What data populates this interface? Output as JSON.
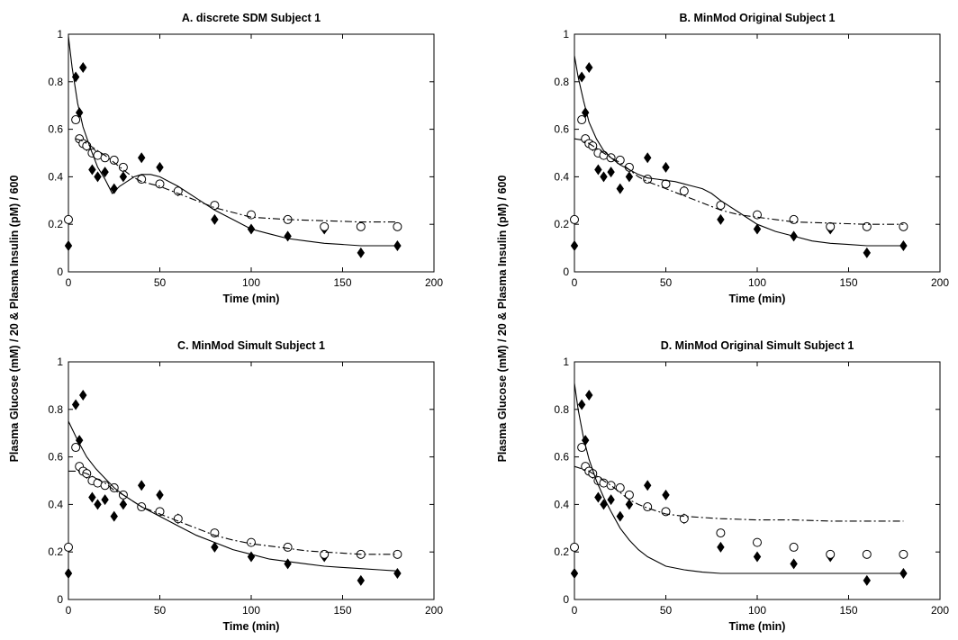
{
  "figure": {
    "shared_ylabel_left": "Plasma  Glucose (mM) / 20 & Plasma  Insulin (pM) / 600",
    "shared_ylabel_right": "Plasma  Glucose (mM) / 20 & Plasma  Insulin (pM) / 600"
  },
  "chart_data": [
    {
      "type": "line",
      "title": "A. discrete SDM Subject 1",
      "xlabel": "Time (min)",
      "ylabel": "",
      "xlim": [
        0,
        200
      ],
      "ylim": [
        0,
        1
      ],
      "xticks": [
        "0",
        "50",
        "100",
        "150",
        "200"
      ],
      "yticks": [
        "0",
        "0.2",
        "0.4",
        "0.6",
        "0.8",
        "1"
      ],
      "series": [
        {
          "marker": "diamond",
          "x": [
            0,
            4,
            6,
            8,
            10,
            13,
            16,
            20,
            25,
            30,
            40,
            50,
            60,
            80,
            100,
            120,
            140,
            160,
            180
          ],
          "y": [
            0.11,
            0.82,
            0.67,
            0.86,
            0.53,
            0.43,
            0.4,
            0.42,
            0.35,
            0.4,
            0.48,
            0.44,
            0.34,
            0.22,
            0.18,
            0.15,
            0.18,
            0.08,
            0.11
          ]
        },
        {
          "marker": "circle",
          "x": [
            0,
            4,
            6,
            8,
            10,
            13,
            16,
            20,
            25,
            30,
            40,
            50,
            60,
            80,
            100,
            120,
            140,
            160,
            180
          ],
          "y": [
            0.22,
            0.64,
            0.56,
            0.54,
            0.53,
            0.5,
            0.49,
            0.48,
            0.47,
            0.44,
            0.39,
            0.37,
            0.34,
            0.28,
            0.24,
            0.22,
            0.19,
            0.19,
            0.19
          ]
        },
        {
          "style": "solid",
          "x": [
            0,
            2,
            5,
            8,
            12,
            16,
            20,
            24,
            28,
            32,
            36,
            40,
            45,
            50,
            55,
            60,
            70,
            80,
            90,
            100,
            110,
            120,
            130,
            140,
            150,
            160,
            170,
            180
          ],
          "y": [
            0.99,
            0.86,
            0.71,
            0.61,
            0.52,
            0.44,
            0.39,
            0.33,
            0.36,
            0.38,
            0.4,
            0.41,
            0.41,
            0.4,
            0.38,
            0.36,
            0.31,
            0.26,
            0.22,
            0.18,
            0.16,
            0.14,
            0.13,
            0.12,
            0.115,
            0.11,
            0.11,
            0.11
          ]
        },
        {
          "style": "dashdot",
          "x": [
            4,
            8,
            12,
            16,
            20,
            25,
            30,
            35,
            40,
            50,
            60,
            70,
            80,
            90,
            100,
            110,
            120,
            140,
            160,
            180
          ],
          "y": [
            0.56,
            0.55,
            0.53,
            0.51,
            0.49,
            0.46,
            0.43,
            0.4,
            0.38,
            0.36,
            0.33,
            0.3,
            0.27,
            0.25,
            0.23,
            0.225,
            0.22,
            0.215,
            0.21,
            0.21
          ]
        }
      ]
    },
    {
      "type": "line",
      "title": "B.  MinMod Original Subject 1",
      "xlabel": "Time (min)",
      "ylabel": "",
      "xlim": [
        0,
        200
      ],
      "ylim": [
        0,
        1
      ],
      "xticks": [
        "0",
        "50",
        "100",
        "150",
        "200"
      ],
      "yticks": [
        "0",
        "0.2",
        "0.4",
        "0.6",
        "0.8",
        "1"
      ],
      "series": [
        {
          "marker": "diamond",
          "x": [
            0,
            4,
            6,
            8,
            10,
            13,
            16,
            20,
            25,
            30,
            40,
            50,
            60,
            80,
            100,
            120,
            140,
            160,
            180
          ],
          "y": [
            0.11,
            0.82,
            0.67,
            0.86,
            0.53,
            0.43,
            0.4,
            0.42,
            0.35,
            0.4,
            0.48,
            0.44,
            0.34,
            0.22,
            0.18,
            0.15,
            0.18,
            0.08,
            0.11
          ]
        },
        {
          "marker": "circle",
          "x": [
            0,
            4,
            6,
            8,
            10,
            13,
            16,
            20,
            25,
            30,
            40,
            50,
            60,
            80,
            100,
            120,
            140,
            160,
            180
          ],
          "y": [
            0.22,
            0.64,
            0.56,
            0.54,
            0.53,
            0.5,
            0.49,
            0.48,
            0.47,
            0.44,
            0.39,
            0.37,
            0.34,
            0.28,
            0.24,
            0.22,
            0.19,
            0.19,
            0.19
          ]
        },
        {
          "style": "solid",
          "x": [
            0,
            2,
            5,
            8,
            12,
            16,
            20,
            25,
            30,
            35,
            40,
            45,
            50,
            55,
            60,
            65,
            70,
            75,
            80,
            90,
            100,
            110,
            120,
            130,
            140,
            150,
            160,
            170,
            180
          ],
          "y": [
            0.91,
            0.82,
            0.72,
            0.63,
            0.56,
            0.51,
            0.48,
            0.45,
            0.43,
            0.41,
            0.395,
            0.39,
            0.385,
            0.38,
            0.37,
            0.36,
            0.35,
            0.33,
            0.3,
            0.25,
            0.2,
            0.17,
            0.15,
            0.13,
            0.12,
            0.115,
            0.11,
            0.11,
            0.11
          ]
        },
        {
          "style": "dashdot",
          "x": [
            0,
            4,
            8,
            12,
            16,
            20,
            25,
            30,
            35,
            40,
            50,
            60,
            70,
            80,
            90,
            100,
            110,
            120,
            140,
            160,
            180
          ],
          "y": [
            0.56,
            0.555,
            0.54,
            0.52,
            0.5,
            0.48,
            0.46,
            0.43,
            0.4,
            0.38,
            0.35,
            0.32,
            0.29,
            0.26,
            0.24,
            0.23,
            0.22,
            0.21,
            0.205,
            0.2,
            0.2
          ]
        }
      ]
    },
    {
      "type": "line",
      "title": "C. MinMod Simult Subject 1",
      "xlabel": "Time (min)",
      "ylabel": "",
      "xlim": [
        0,
        200
      ],
      "ylim": [
        0,
        1
      ],
      "xticks": [
        "0",
        "50",
        "100",
        "150",
        "200"
      ],
      "yticks": [
        "0",
        "0.2",
        "0.4",
        "0.6",
        "0.8",
        "1"
      ],
      "series": [
        {
          "marker": "diamond",
          "x": [
            0,
            4,
            6,
            8,
            10,
            13,
            16,
            20,
            25,
            30,
            40,
            50,
            60,
            80,
            100,
            120,
            140,
            160,
            180
          ],
          "y": [
            0.11,
            0.82,
            0.67,
            0.86,
            0.53,
            0.43,
            0.4,
            0.42,
            0.35,
            0.4,
            0.48,
            0.44,
            0.34,
            0.22,
            0.18,
            0.15,
            0.18,
            0.08,
            0.11
          ]
        },
        {
          "marker": "circle",
          "x": [
            0,
            4,
            6,
            8,
            10,
            13,
            16,
            20,
            25,
            30,
            40,
            50,
            60,
            80,
            100,
            120,
            140,
            160,
            180
          ],
          "y": [
            0.22,
            0.64,
            0.56,
            0.54,
            0.53,
            0.5,
            0.49,
            0.48,
            0.47,
            0.44,
            0.39,
            0.37,
            0.34,
            0.28,
            0.24,
            0.22,
            0.19,
            0.19,
            0.19
          ]
        },
        {
          "style": "solid",
          "x": [
            0,
            5,
            10,
            15,
            20,
            25,
            30,
            40,
            50,
            60,
            70,
            80,
            90,
            100,
            110,
            120,
            130,
            140,
            150,
            160,
            170,
            180
          ],
          "y": [
            0.75,
            0.67,
            0.6,
            0.55,
            0.51,
            0.47,
            0.44,
            0.39,
            0.35,
            0.31,
            0.27,
            0.24,
            0.21,
            0.19,
            0.17,
            0.16,
            0.15,
            0.14,
            0.135,
            0.13,
            0.125,
            0.12
          ]
        },
        {
          "style": "dashdot",
          "x": [
            0,
            5,
            10,
            15,
            20,
            25,
            30,
            40,
            50,
            60,
            70,
            80,
            90,
            100,
            110,
            120,
            130,
            140,
            160,
            180
          ],
          "y": [
            0.54,
            0.54,
            0.53,
            0.51,
            0.49,
            0.46,
            0.44,
            0.39,
            0.36,
            0.33,
            0.3,
            0.27,
            0.25,
            0.235,
            0.225,
            0.215,
            0.205,
            0.2,
            0.19,
            0.19
          ]
        }
      ]
    },
    {
      "type": "line",
      "title": "D.  MinMod Original Simult Subject 1",
      "xlabel": "Time (min)",
      "ylabel": "",
      "xlim": [
        0,
        200
      ],
      "ylim": [
        0,
        1
      ],
      "xticks": [
        "0",
        "50",
        "100",
        "150",
        "200"
      ],
      "yticks": [
        "0",
        "0.2",
        "0.4",
        "0.6",
        "0.8",
        "1"
      ],
      "series": [
        {
          "marker": "diamond",
          "x": [
            0,
            4,
            6,
            8,
            10,
            13,
            16,
            20,
            25,
            30,
            40,
            50,
            60,
            80,
            100,
            120,
            140,
            160,
            180
          ],
          "y": [
            0.11,
            0.82,
            0.67,
            0.86,
            0.53,
            0.43,
            0.4,
            0.42,
            0.35,
            0.4,
            0.48,
            0.44,
            0.34,
            0.22,
            0.18,
            0.15,
            0.18,
            0.08,
            0.11
          ]
        },
        {
          "marker": "circle",
          "x": [
            0,
            4,
            6,
            8,
            10,
            13,
            16,
            20,
            25,
            30,
            40,
            50,
            60,
            80,
            100,
            120,
            140,
            160,
            180
          ],
          "y": [
            0.22,
            0.64,
            0.56,
            0.54,
            0.53,
            0.5,
            0.49,
            0.48,
            0.47,
            0.44,
            0.39,
            0.37,
            0.34,
            0.28,
            0.24,
            0.22,
            0.19,
            0.19,
            0.19
          ]
        },
        {
          "style": "solid",
          "x": [
            0,
            2,
            5,
            8,
            12,
            16,
            20,
            25,
            30,
            35,
            40,
            45,
            50,
            60,
            70,
            80,
            90,
            100,
            120,
            140,
            160,
            180
          ],
          "y": [
            0.91,
            0.8,
            0.68,
            0.59,
            0.5,
            0.43,
            0.37,
            0.3,
            0.25,
            0.21,
            0.18,
            0.16,
            0.14,
            0.125,
            0.115,
            0.11,
            0.11,
            0.11,
            0.11,
            0.11,
            0.11,
            0.11
          ]
        },
        {
          "style": "dashdot",
          "x": [
            0,
            4,
            8,
            12,
            16,
            20,
            25,
            30,
            35,
            40,
            50,
            60,
            70,
            80,
            100,
            120,
            140,
            160,
            180
          ],
          "y": [
            0.56,
            0.55,
            0.54,
            0.52,
            0.5,
            0.48,
            0.45,
            0.42,
            0.4,
            0.385,
            0.36,
            0.35,
            0.345,
            0.34,
            0.335,
            0.335,
            0.33,
            0.33,
            0.33
          ]
        }
      ]
    }
  ]
}
